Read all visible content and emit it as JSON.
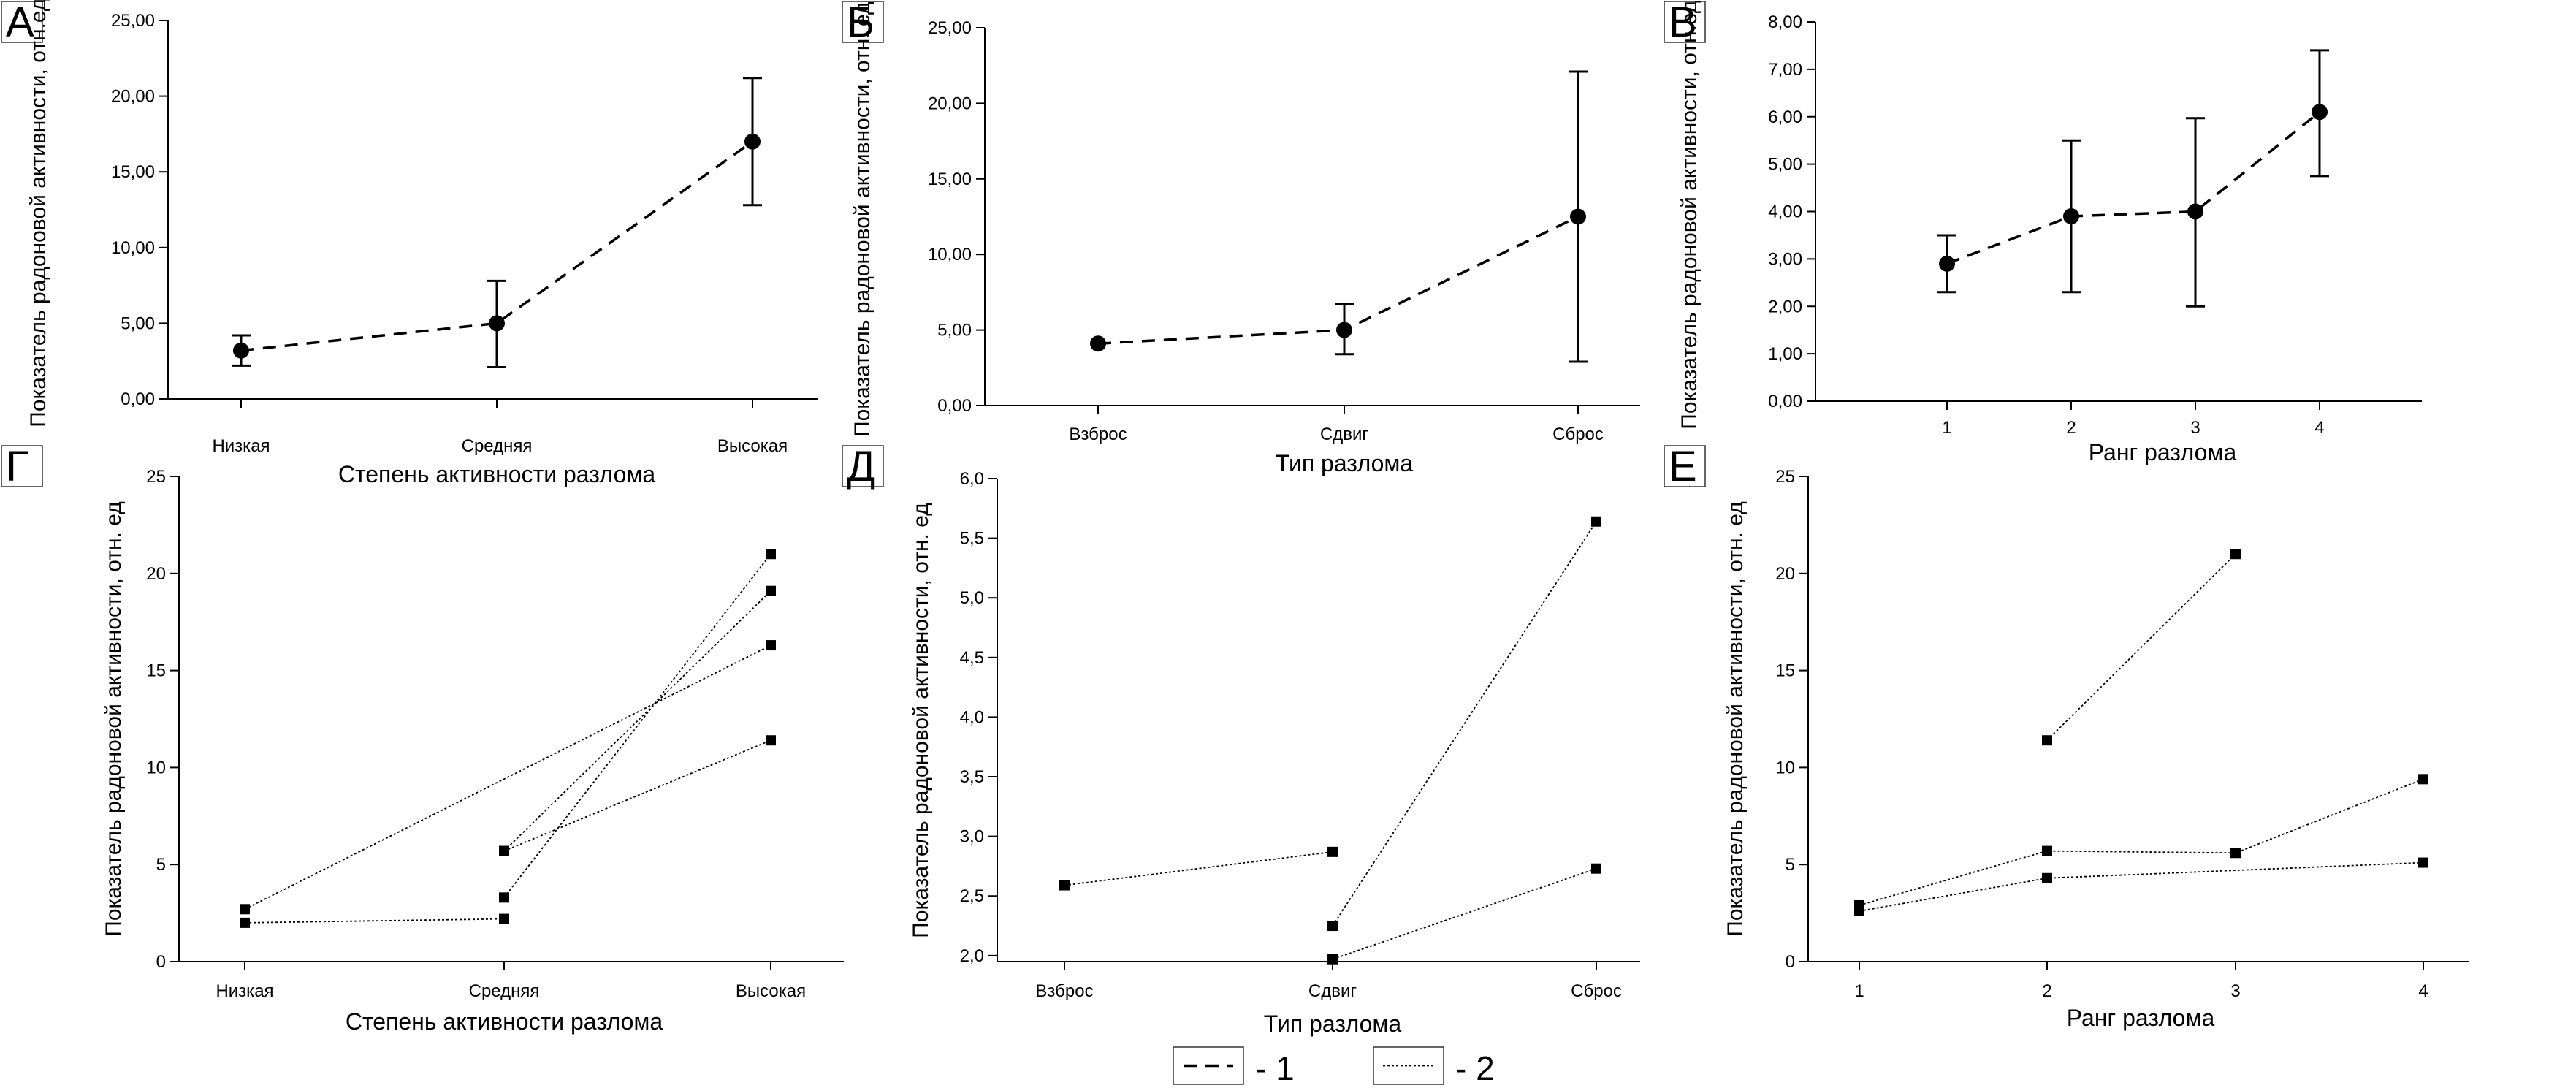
{
  "colors": {
    "ink": "#000000",
    "background": "#ffffff"
  },
  "legend": {
    "items": [
      {
        "style": "dashed",
        "label": "- 1"
      },
      {
        "style": "dotted",
        "label": "- 2"
      }
    ]
  },
  "chart_data": [
    {
      "panel": "А",
      "type": "line",
      "line_style": "dashed",
      "marker": "circle",
      "error_bars": true,
      "categories": [
        "Низкая",
        "Средняя",
        "Высокая"
      ],
      "series": [
        {
          "values": [
            3.2,
            5.0,
            17.0
          ],
          "err_low": [
            2.2,
            2.1,
            12.8
          ],
          "err_high": [
            4.2,
            7.8,
            21.2
          ]
        }
      ],
      "xlabel": "Степень активности разлома",
      "ylabel": "Показатель радоновой активности, отн.ед.",
      "ylim": [
        0,
        25
      ],
      "yticks": [
        "0,00",
        "5,00",
        "10,00",
        "15,00",
        "20,00",
        "25,00"
      ],
      "grid": false
    },
    {
      "panel": "Б",
      "type": "line",
      "line_style": "dashed",
      "marker": "circle",
      "error_bars": true,
      "categories": [
        "Взброс",
        "Сдвиг",
        "Сброс"
      ],
      "series": [
        {
          "values": [
            4.1,
            5.0,
            12.5
          ],
          "err_low": [
            null,
            3.4,
            2.9
          ],
          "err_high": [
            null,
            6.7,
            22.1
          ]
        }
      ],
      "xlabel": "Тип разлома",
      "ylabel": "Показатель радоновой активности, отн. ед.",
      "ylim": [
        0,
        25
      ],
      "yticks": [
        "0,00",
        "5,00",
        "10,00",
        "15,00",
        "20,00",
        "25,00"
      ],
      "grid": false
    },
    {
      "panel": "В",
      "type": "line",
      "line_style": "dashed",
      "marker": "circle",
      "error_bars": true,
      "categories": [
        "1",
        "2",
        "3",
        "4"
      ],
      "series": [
        {
          "values": [
            2.9,
            3.9,
            4.0,
            6.1
          ],
          "err_low": [
            2.3,
            2.3,
            2.0,
            4.75
          ],
          "err_high": [
            3.5,
            5.5,
            5.97,
            7.4
          ]
        }
      ],
      "xlabel": "Ранг разлома",
      "ylabel": "Показатель радоновой активности, отн.ед.",
      "ylim": [
        0,
        8
      ],
      "yticks": [
        "0,00",
        "1,00",
        "2,00",
        "3,00",
        "4,00",
        "5,00",
        "6,00",
        "7,00",
        "8,00"
      ],
      "grid": false
    },
    {
      "panel": "Г",
      "type": "line",
      "line_style": "dotted",
      "marker": "square",
      "categories": [
        "Низкая",
        "Средняя",
        "Высокая"
      ],
      "series": [
        {
          "values": [
            2.7,
            null,
            16.3
          ]
        },
        {
          "values": [
            2.0,
            2.2,
            null
          ]
        },
        {
          "values": [
            null,
            5.7,
            11.4
          ]
        },
        {
          "values": [
            null,
            5.7,
            19.1
          ]
        },
        {
          "values": [
            null,
            3.3,
            21.0
          ]
        }
      ],
      "xlabel": "Степень активности разлома",
      "ylabel": "Показатель радоновой активности, отн. ед",
      "ylim": [
        0,
        25
      ],
      "yticks": [
        "0",
        "5",
        "10",
        "15",
        "20",
        "25"
      ],
      "grid": false
    },
    {
      "panel": "Д",
      "type": "line",
      "line_style": "dotted",
      "marker": "square",
      "categories": [
        "Взброс",
        "Сдвиг",
        "Сброс"
      ],
      "series": [
        {
          "values": [
            2.59,
            2.87,
            null
          ]
        },
        {
          "values": [
            null,
            2.25,
            5.64
          ]
        },
        {
          "values": [
            null,
            1.97,
            2.73
          ]
        }
      ],
      "xlabel": "Тип разлома",
      "ylabel": "Показатель радоновой активности, отн. ед",
      "ylim": [
        1.95,
        6.0
      ],
      "yticks": [
        "2,0",
        "2,5",
        "3,0",
        "3,5",
        "4,0",
        "4,5",
        "5,0",
        "5,5",
        "6,0"
      ],
      "grid": false
    },
    {
      "panel": "Е",
      "type": "line",
      "line_style": "dotted",
      "marker": "square",
      "categories": [
        "1",
        "2",
        "3",
        "4"
      ],
      "series": [
        {
          "values": [
            null,
            11.4,
            21.0,
            null
          ]
        },
        {
          "values": [
            2.9,
            5.7,
            5.6,
            9.4
          ]
        },
        {
          "values": [
            2.6,
            4.3,
            null,
            5.1
          ]
        }
      ],
      "xlabel": "Ранг разлома",
      "ylabel": "Показатель радоновой активности, отн. ед",
      "ylim": [
        0,
        25
      ],
      "yticks": [
        "0",
        "5",
        "10",
        "15",
        "20",
        "25"
      ],
      "grid": false
    }
  ]
}
